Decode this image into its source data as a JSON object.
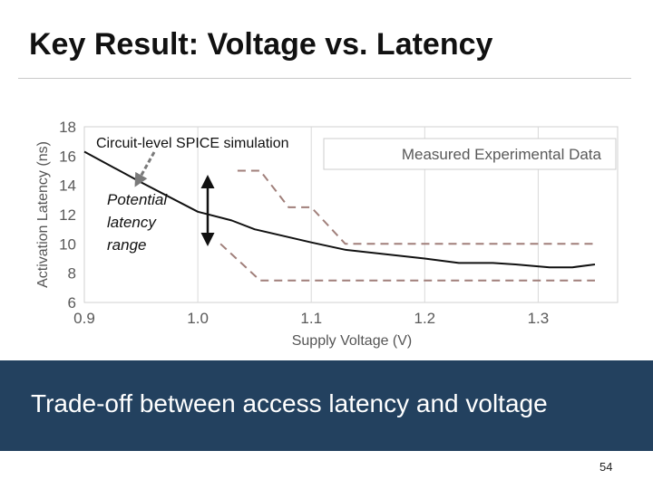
{
  "slide": {
    "title": "Key Result: Voltage vs. Latency",
    "banner_text": "Trade-off between access latency and voltage",
    "page_number": "54"
  },
  "colors": {
    "banner": "#23415f",
    "simulation_line": "#111111",
    "measured_dashed": "#a07f7a",
    "annotation_arrow": "#7a7a7a"
  },
  "chart_data": {
    "type": "line",
    "title": "",
    "xlabel": "Supply Voltage (V)",
    "ylabel": "Activation Latency (ns)",
    "xlim": [
      0.9,
      1.37
    ],
    "ylim": [
      6,
      18
    ],
    "x_ticks": [
      0.9,
      1.0,
      1.1,
      1.2,
      1.3
    ],
    "x_tick_labels": [
      "0.9",
      "1.0",
      "1.1",
      "1.2",
      "1.3"
    ],
    "y_ticks": [
      6,
      8,
      10,
      12,
      14,
      16,
      18
    ],
    "y_tick_labels": [
      "6",
      "8",
      "10",
      "12",
      "14",
      "16",
      "18"
    ],
    "grid": "vertical",
    "legend": "top-right",
    "series": [
      {
        "name": "",
        "style": "solid",
        "x": [
          0.9,
          0.95,
          1.0,
          1.03,
          1.05,
          1.1,
          1.13,
          1.2,
          1.23,
          1.26,
          1.28,
          1.31,
          1.33,
          1.35
        ],
        "y": [
          16.3,
          14.2,
          12.2,
          11.6,
          11.0,
          10.1,
          9.6,
          9.0,
          8.7,
          8.7,
          8.6,
          8.4,
          8.4,
          8.6
        ]
      },
      {
        "name": "Measured Experimental Data",
        "style": "dashed",
        "x": [
          1.035,
          1.055,
          1.08,
          1.1,
          1.13,
          1.35
        ],
        "y": [
          15.0,
          15.0,
          12.5,
          12.5,
          10.0,
          10.0
        ]
      },
      {
        "name": "Measured Experimental Data",
        "style": "dashed",
        "x": [
          1.02,
          1.055,
          1.35
        ],
        "y": [
          10.0,
          7.5,
          7.5
        ]
      }
    ],
    "annotations": [
      {
        "text": "Circuit-level SPICE simulation",
        "target_x": 0.95,
        "target_y": 14.1
      },
      {
        "lines": [
          "Potential",
          "latency",
          "range"
        ],
        "range_x": 1.055,
        "range_y": [
          10.0,
          15.0
        ]
      }
    ]
  }
}
